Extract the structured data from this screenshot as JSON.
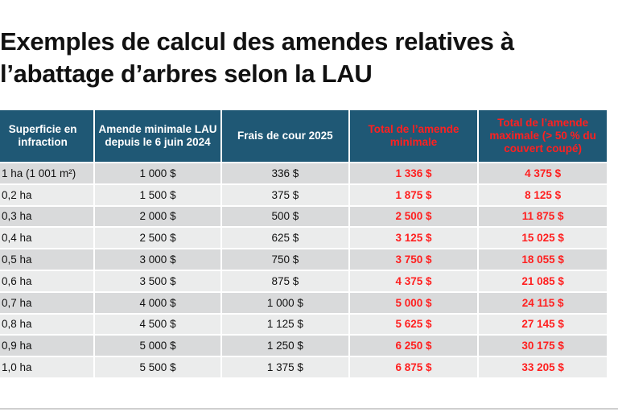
{
  "title": {
    "line1": "Exemples de calcul des amendes relatives à",
    "line2": "l’abattage d’arbres selon la LAU"
  },
  "table": {
    "headers": [
      "Superficie en infraction",
      "Amende minimale LAU depuis le 6 juin 2024",
      "Frais de cour 2025",
      "Total de l’amende minimale",
      "Total de l’amende maximale (> 50 % du couvert coupé)"
    ],
    "rows": [
      [
        "1 ha (1 001 m²)",
        "1 000 $",
        "336 $",
        "1 336 $",
        "4 375 $"
      ],
      [
        "0,2 ha",
        "1 500 $",
        "375 $",
        "1 875 $",
        "8 125 $"
      ],
      [
        "0,3 ha",
        "2 000 $",
        "500 $",
        "2 500 $",
        "11 875 $"
      ],
      [
        "0,4 ha",
        "2 500 $",
        "625 $",
        "3 125 $",
        "15 025 $"
      ],
      [
        "0,5 ha",
        "3 000 $",
        "750 $",
        "3 750 $",
        "18 055 $"
      ],
      [
        "0,6 ha",
        "3 500 $",
        "875 $",
        "4 375 $",
        "21 085 $"
      ],
      [
        "0,7 ha",
        "4 000 $",
        "1 000 $",
        "5 000 $",
        "24 115 $"
      ],
      [
        "0,8 ha",
        "4 500 $",
        "1 125 $",
        "5 625 $",
        "27 145 $"
      ],
      [
        "0,9 ha",
        "5 000 $",
        "1 250 $",
        "6 250 $",
        "30 175 $"
      ],
      [
        "1,0 ha",
        "5 500 $",
        "1 375 $",
        "6 875 $",
        "33 205 $"
      ]
    ]
  },
  "colors": {
    "header_bg": "#1f5875",
    "header_text": "#ffffff",
    "highlight_text": "#ff2020",
    "row_odd": "#d9dadb",
    "row_even": "#ebecec"
  }
}
